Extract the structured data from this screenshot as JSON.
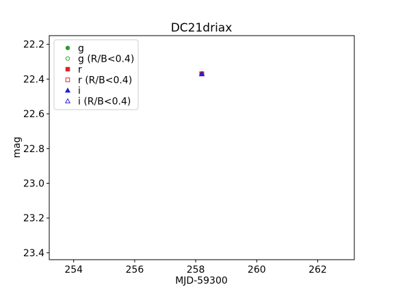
{
  "chart_data": {
    "type": "scatter",
    "title": "DC21driax",
    "xlabel": "MJD-59300",
    "ylabel": "mag",
    "xlim": [
      253.2,
      263.2
    ],
    "ylim": [
      23.44,
      22.15
    ],
    "y_inverted": true,
    "x_ticks": [
      254,
      256,
      258,
      260,
      262
    ],
    "y_ticks": [
      22.2,
      22.4,
      22.6,
      22.8,
      23.0,
      23.2,
      23.4
    ],
    "grid": false,
    "legend_position": "top-left",
    "series": [
      {
        "name": "g",
        "marker": "circle",
        "filled": true,
        "color": "#2ca02c",
        "points": []
      },
      {
        "name": "g (R/B<0.4)",
        "marker": "circle",
        "filled": false,
        "color": "#2ca02c",
        "points": []
      },
      {
        "name": "r",
        "marker": "square",
        "filled": true,
        "color": "#d62728",
        "points": [
          {
            "x": 258.2,
            "y": 22.37
          }
        ]
      },
      {
        "name": "r (R/B<0.4)",
        "marker": "square",
        "filled": false,
        "color": "#d62728",
        "points": []
      },
      {
        "name": "i",
        "marker": "triangle",
        "filled": true,
        "color": "#1f1fe0",
        "points": [
          {
            "x": 258.2,
            "y": 22.37
          }
        ]
      },
      {
        "name": "i (R/B<0.4)",
        "marker": "triangle",
        "filled": false,
        "color": "#1f1fe0",
        "points": []
      }
    ]
  }
}
